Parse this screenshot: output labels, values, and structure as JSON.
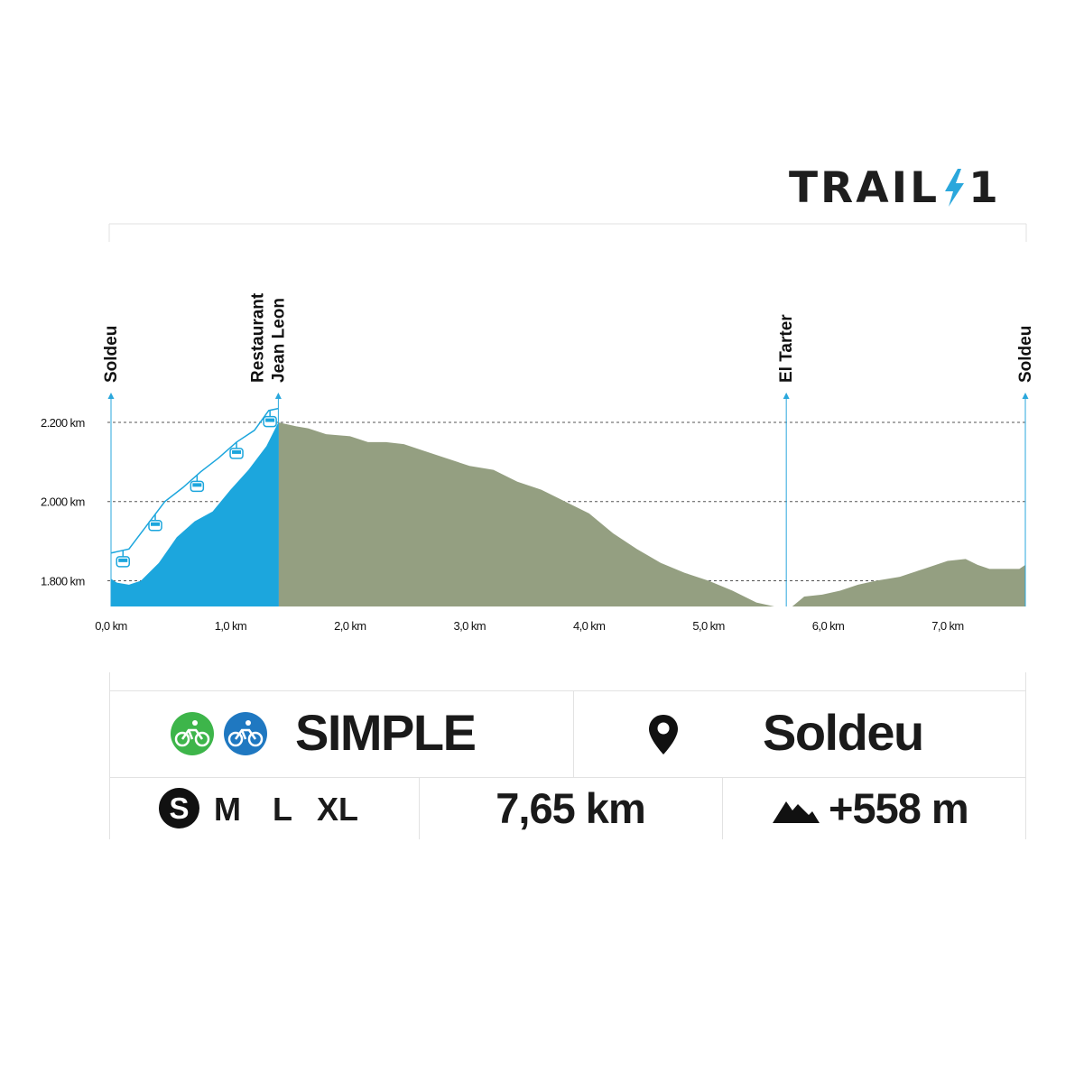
{
  "logo": {
    "text": "TRAIL",
    "number": "1",
    "bolt_color": "#2aa7dc",
    "text_color": "#1e1e1e"
  },
  "chart_data": {
    "type": "area",
    "x_unit": "km",
    "y_unit": "m",
    "xlim": [
      0,
      7.65
    ],
    "ylim": [
      1735,
      2200
    ],
    "x_ticks": [
      0,
      1,
      2,
      3,
      4,
      5,
      6,
      7
    ],
    "x_tick_labels": [
      "0,0 km",
      "1,0 km",
      "2,0 km",
      "3,0 km",
      "4,0 km",
      "5,0 km",
      "6,0 km",
      "7,0 km"
    ],
    "y_ticks": [
      1800,
      2000,
      2200
    ],
    "y_tick_labels": [
      "1.800 km",
      "2.000 km",
      "2.200 km"
    ],
    "gridlines": "dashed horizontal at y ticks",
    "waypoints": [
      {
        "label": [
          "Soldeu"
        ],
        "x": 0
      },
      {
        "label": [
          "Restaurant",
          "Jean Leon"
        ],
        "x": 1.4
      },
      {
        "label": [
          "El Tarter"
        ],
        "x": 5.65
      },
      {
        "label": [
          "Soldeu"
        ],
        "x": 7.65
      }
    ],
    "series": [
      {
        "segment": "gondola",
        "color": "#1ca6dd",
        "x": [
          0,
          0.05,
          0.15,
          0.25,
          0.4,
          0.55,
          0.7,
          0.85,
          1.0,
          1.15,
          1.3,
          1.4
        ],
        "y": [
          1805,
          1795,
          1790,
          1800,
          1845,
          1910,
          1950,
          1975,
          2030,
          2080,
          2140,
          2200
        ]
      },
      {
        "segment": "descent",
        "color": "#949f81",
        "x": [
          1.4,
          1.55,
          1.65,
          1.8,
          2.0,
          2.15,
          2.3,
          2.45,
          2.6,
          2.8,
          3.0,
          3.2,
          3.4,
          3.6,
          3.8,
          4.0,
          4.2,
          4.4,
          4.6,
          4.8,
          5.0,
          5.2,
          5.4,
          5.55
        ],
        "y": [
          2200,
          2190,
          2185,
          2170,
          2165,
          2150,
          2150,
          2145,
          2130,
          2110,
          2090,
          2080,
          2050,
          2030,
          2000,
          1970,
          1920,
          1880,
          1845,
          1820,
          1800,
          1775,
          1745,
          1735
        ]
      },
      {
        "segment": "return",
        "color": "#949f81",
        "x": [
          5.7,
          5.8,
          5.95,
          6.1,
          6.25,
          6.4,
          6.6,
          6.8,
          7.0,
          7.15,
          7.25,
          7.35,
          7.5,
          7.6,
          7.65
        ],
        "y": [
          1735,
          1760,
          1765,
          1775,
          1790,
          1800,
          1810,
          1830,
          1850,
          1855,
          1840,
          1830,
          1830,
          1830,
          1840
        ]
      }
    ],
    "gondola_cable": {
      "color": "#1ca6dd",
      "x": [
        0,
        0.15,
        0.3,
        0.45,
        0.6,
        0.75,
        0.9,
        1.05,
        1.2,
        1.32,
        1.4
      ],
      "y": [
        1870,
        1880,
        1940,
        2000,
        2035,
        2075,
        2110,
        2150,
        2180,
        2230,
        2235
      ],
      "cabins_x": [
        0.1,
        0.37,
        0.72,
        1.05,
        1.33
      ]
    }
  },
  "info": {
    "difficulty": "SIMPLE",
    "difficulty_icons": [
      {
        "name": "green-bike-icon",
        "color": "#3db54a"
      },
      {
        "name": "blue-bike-icon",
        "color": "#1f78c1"
      }
    ],
    "location": "Soldeu",
    "sizes": [
      "S",
      "M",
      "L",
      "XL"
    ],
    "selected_size": "S",
    "distance": "7,65 km",
    "elevation": "+558 m"
  }
}
